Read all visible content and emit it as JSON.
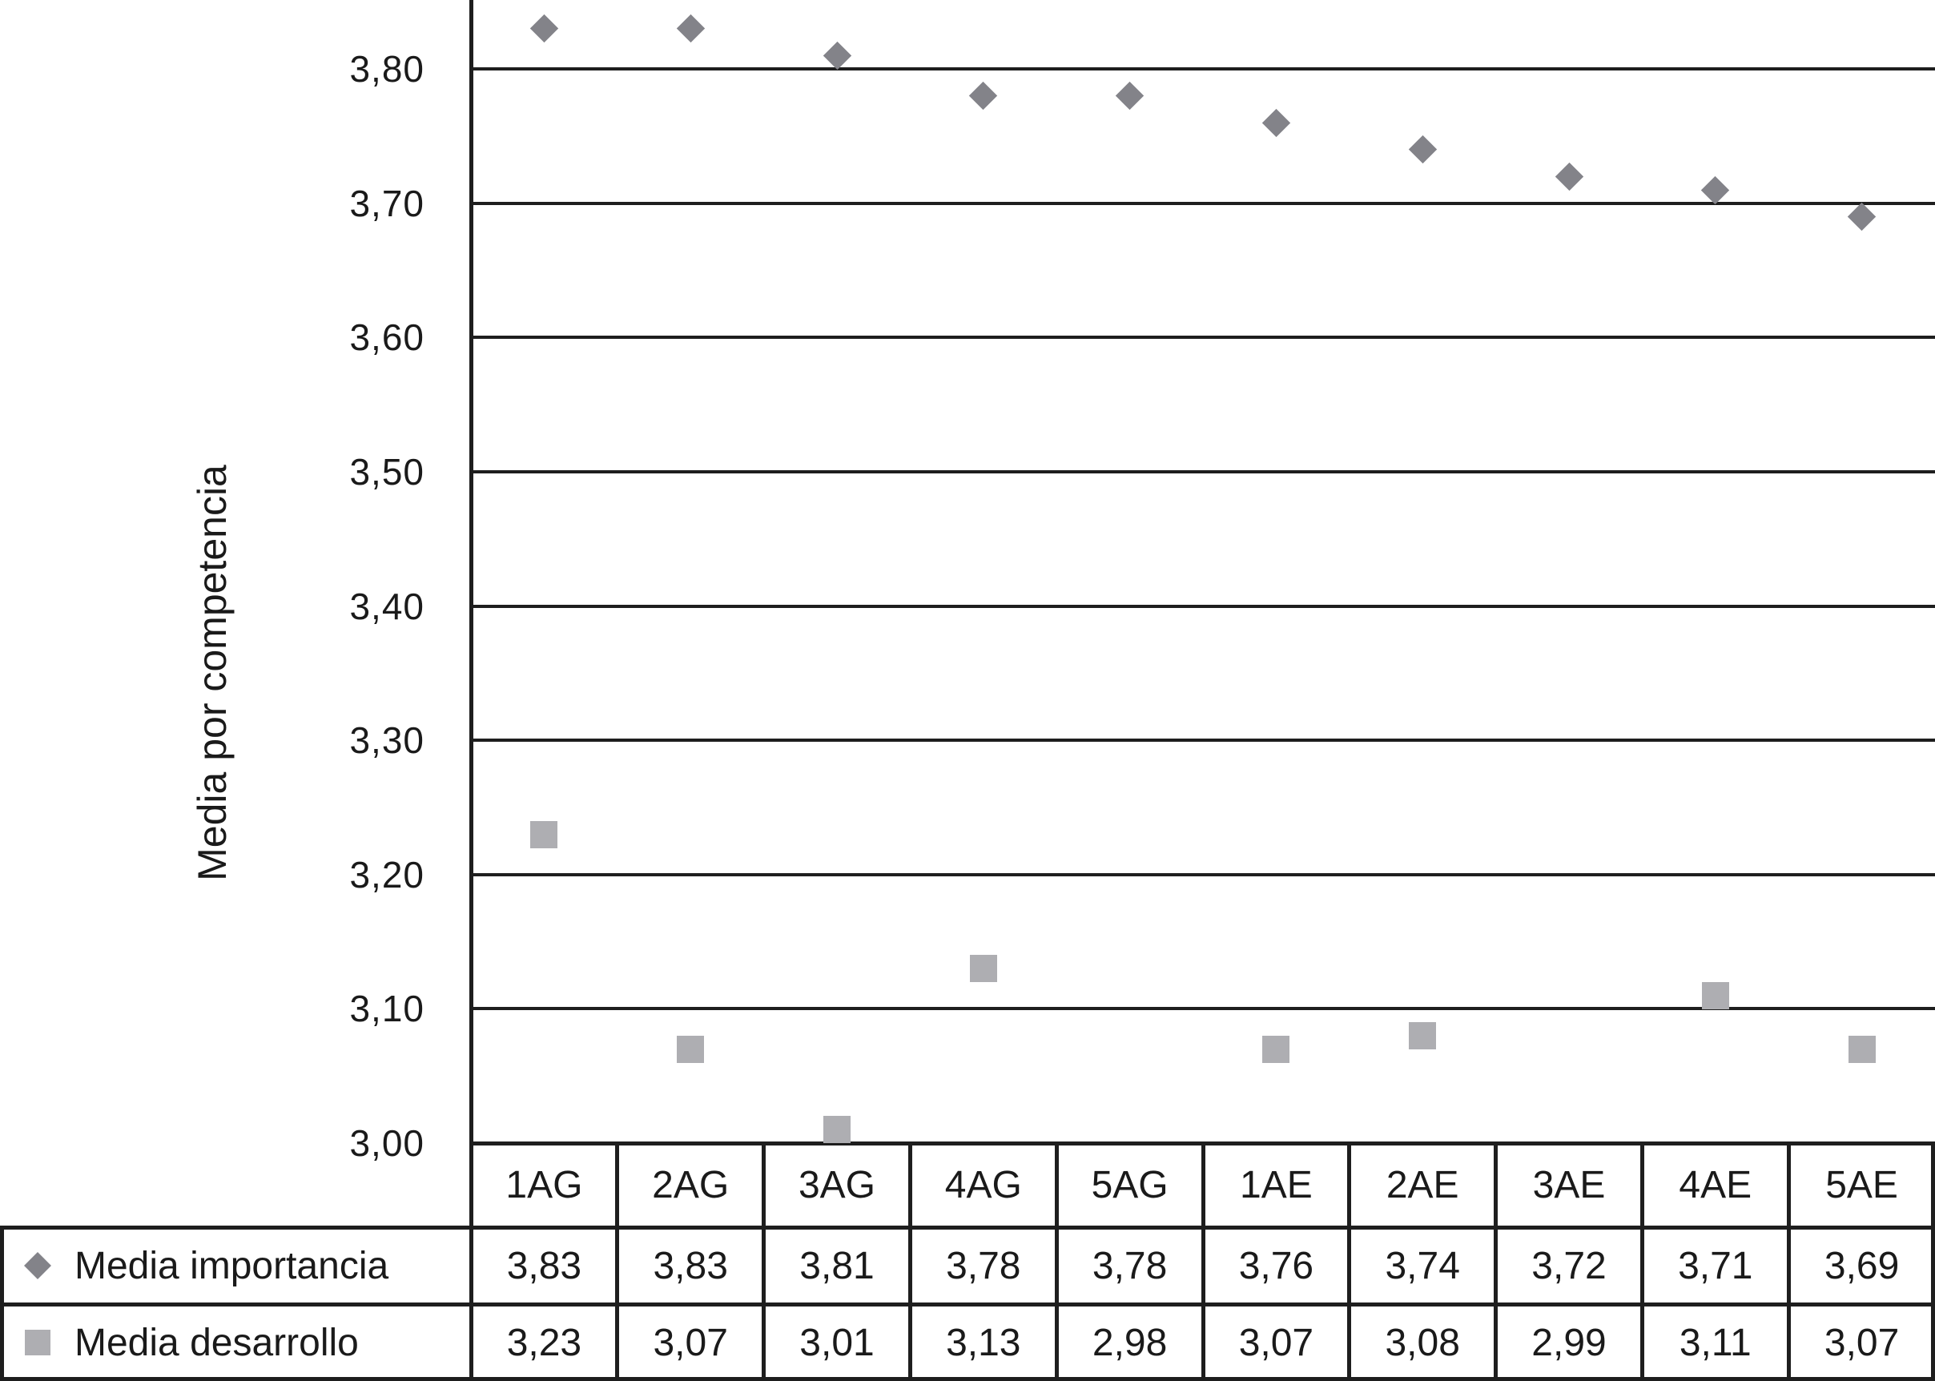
{
  "chart_data": {
    "type": "scatter",
    "categories": [
      "1AG",
      "2AG",
      "3AG",
      "4AG",
      "5AG",
      "1AE",
      "2AE",
      "3AE",
      "4AE",
      "5AE"
    ],
    "series": [
      {
        "name": "Media importancia",
        "marker": "diamond",
        "color": "#838389",
        "values": [
          3.83,
          3.83,
          3.81,
          3.78,
          3.78,
          3.76,
          3.74,
          3.72,
          3.71,
          3.69
        ]
      },
      {
        "name": "Media desarrollo",
        "marker": "square",
        "color": "#aeaeb2",
        "values": [
          3.23,
          3.07,
          3.01,
          3.13,
          2.98,
          3.07,
          3.08,
          2.99,
          3.11,
          3.07
        ]
      }
    ],
    "ylabel": "Media por competencia",
    "ylim": [
      3.0,
      3.85
    ],
    "yticks": [
      "3,00",
      "3,10",
      "3,20",
      "3,30",
      "3,40",
      "3,50",
      "3,60",
      "3,70",
      "3,80"
    ],
    "grid": true,
    "legend_position": "table-left",
    "axis_color": "#1e1e1e",
    "decimal_separator": ","
  },
  "table": {
    "header": [
      "1AG",
      "2AG",
      "3AG",
      "4AG",
      "5AG",
      "1AE",
      "2AE",
      "3AE",
      "4AE",
      "5AE"
    ],
    "rows": [
      {
        "label": "Media importancia",
        "values": [
          "3,83",
          "3,83",
          "3,81",
          "3,78",
          "3,78",
          "3,76",
          "3,74",
          "3,72",
          "3,71",
          "3,69"
        ]
      },
      {
        "label": "Media desarrollo",
        "values": [
          "3,23",
          "3,07",
          "3,01",
          "3,13",
          "2,98",
          "3,07",
          "3,08",
          "2,99",
          "3,11",
          "3,07"
        ]
      }
    ]
  }
}
